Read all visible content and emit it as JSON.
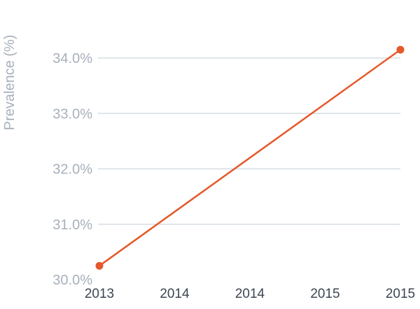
{
  "chart_data": {
    "type": "line",
    "ylabel": "Prevalence (%)",
    "xlabel": "",
    "x_tick_labels": [
      "2013",
      "2014",
      "2014",
      "2015",
      "2015"
    ],
    "y_ticks": [
      30.0,
      31.0,
      32.0,
      33.0,
      34.0
    ],
    "y_tick_labels": [
      "30.0%",
      "31.0%",
      "32.0%",
      "33.0%",
      "34.0%"
    ],
    "ylim": [
      30.0,
      34.0
    ],
    "grid": "horizontal",
    "series": [
      {
        "x": [
          2013,
          2015
        ],
        "values": [
          30.25,
          34.15
        ],
        "color": "#e5592a"
      }
    ]
  }
}
